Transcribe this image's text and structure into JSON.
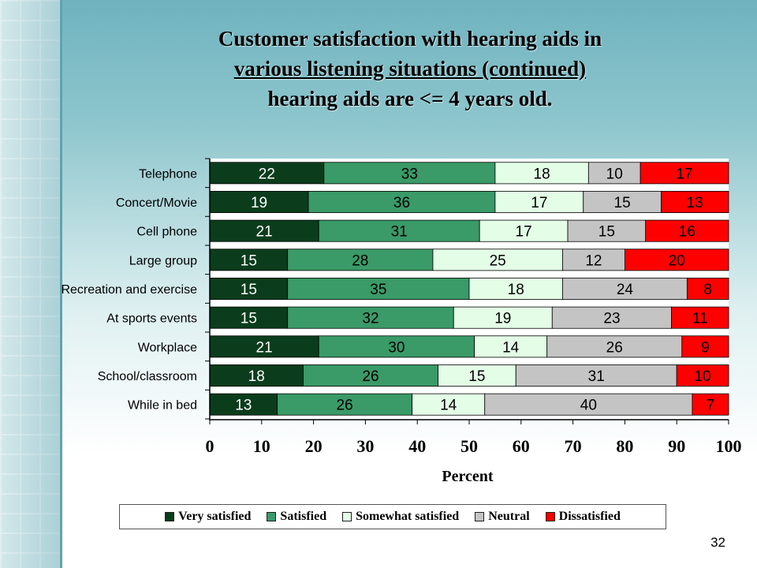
{
  "title": {
    "line1": "Customer satisfaction with hearing aids in",
    "line2": "various listening situations (continued)",
    "line3": "hearing aids are <= 4 years old."
  },
  "page_number": "32",
  "chart_data": {
    "type": "bar",
    "orientation": "horizontal",
    "stacked": true,
    "categories": [
      "Telephone",
      "Concert/Movie",
      "Cell phone",
      "Large group",
      "Recreation and exercise",
      "At sports events",
      "Workplace",
      "School/classroom",
      "While in bed"
    ],
    "series": [
      {
        "name": "Very satisfied",
        "color": "#0b3d1c",
        "label_color": "#ffffff",
        "values": [
          22,
          19,
          21,
          15,
          15,
          15,
          21,
          18,
          13
        ]
      },
      {
        "name": "Satisfied",
        "color": "#3a9a68",
        "label_color": "#000000",
        "values": [
          33,
          36,
          31,
          28,
          35,
          32,
          30,
          26,
          26
        ]
      },
      {
        "name": "Somewhat satisfied",
        "color": "#e3fde6",
        "label_color": "#000000",
        "values": [
          18,
          17,
          17,
          25,
          18,
          19,
          14,
          15,
          14
        ]
      },
      {
        "name": "Neutral",
        "color": "#c4c4c4",
        "label_color": "#000000",
        "values": [
          10,
          15,
          15,
          12,
          24,
          23,
          26,
          31,
          40
        ]
      },
      {
        "name": "Dissatisfied",
        "color": "#ff0000",
        "label_color": "#000000",
        "values": [
          17,
          13,
          16,
          20,
          8,
          11,
          9,
          10,
          7
        ]
      }
    ],
    "xlabel": "Percent",
    "xlim": [
      0,
      100
    ],
    "xticks": [
      0,
      10,
      20,
      30,
      40,
      50,
      60,
      70,
      80,
      90,
      100
    ],
    "grid": false,
    "legend_position": "bottom"
  }
}
